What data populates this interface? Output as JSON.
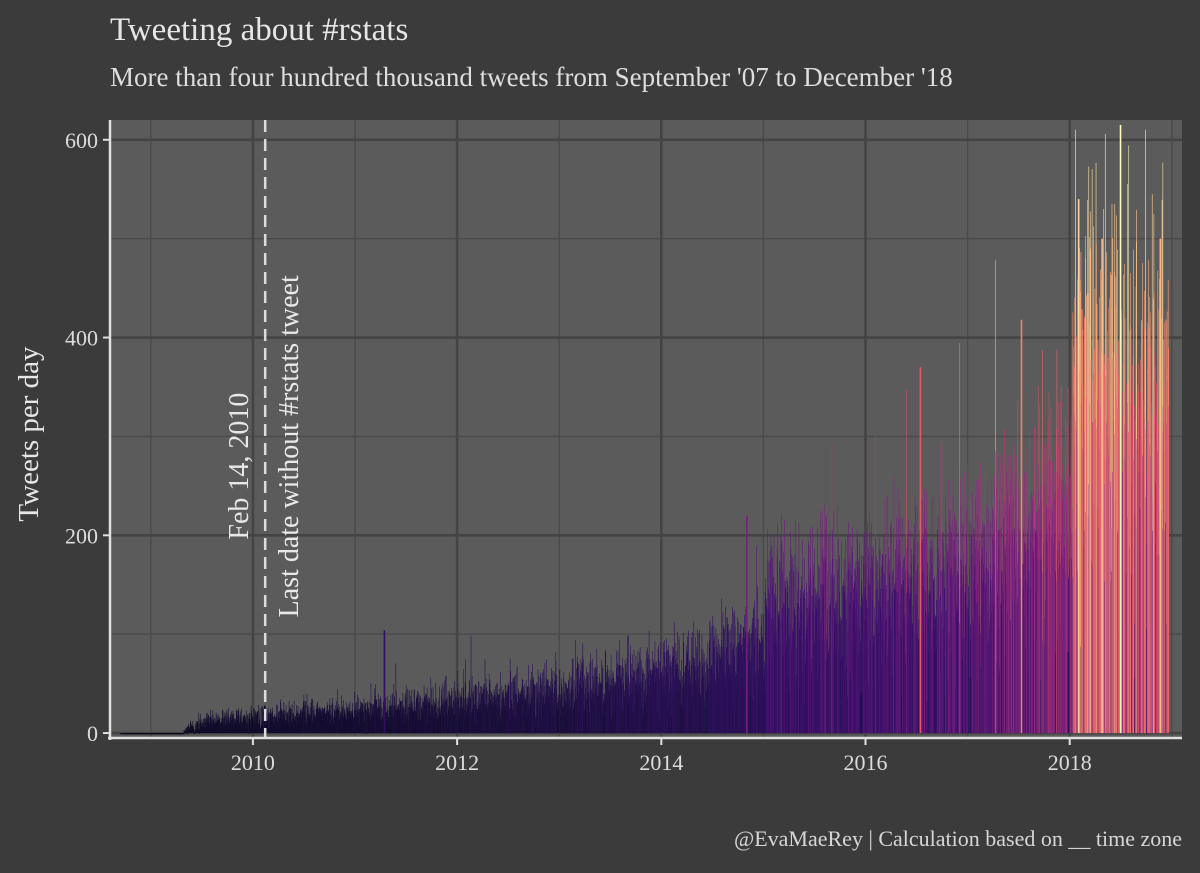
{
  "header": {
    "title": "Tweeting about #rstats",
    "subtitle": "More than four hundred thousand tweets from September '07 to December '18"
  },
  "caption": "@EvaMaeRey | Calculation based on __ time zone",
  "chart_data": {
    "type": "bar",
    "title": "Tweeting about #rstats",
    "subtitle": "More than four hundred thousand tweets from September '07 to December '18",
    "xlabel": "",
    "ylabel": "Tweets per day",
    "xlim": [
      2008.6,
      2019.1
    ],
    "ylim": [
      -5,
      620
    ],
    "grid": true,
    "x_ticks": [
      {
        "value": 2010,
        "label": "2010"
      },
      {
        "value": 2012,
        "label": "2012"
      },
      {
        "value": 2014,
        "label": "2014"
      },
      {
        "value": 2016,
        "label": "2016"
      },
      {
        "value": 2018,
        "label": "2018"
      }
    ],
    "y_ticks": [
      {
        "value": 0,
        "label": "0"
      },
      {
        "value": 200,
        "label": "200"
      },
      {
        "value": 400,
        "label": "400"
      },
      {
        "value": 600,
        "label": "600"
      }
    ],
    "reference_line": {
      "x": 2010.12,
      "style": "dashed"
    },
    "annotations": [
      {
        "text": "Feb 14, 2010",
        "x": 2009.95,
        "y": 270
      },
      {
        "text": "Last date without #rstats tweet",
        "x": 2010.44,
        "y": 290
      }
    ],
    "trend": {
      "x": [
        2008.7,
        2009.3,
        2009.4,
        2009.6,
        2010.0,
        2010.5,
        2011.0,
        2011.5,
        2012.0,
        2012.5,
        2013.0,
        2013.5,
        2014.0,
        2014.5,
        2015.0,
        2015.05,
        2015.5,
        2016.0,
        2016.5,
        2017.0,
        2017.5,
        2018.0,
        2018.05,
        2018.5,
        2019.0
      ],
      "y": [
        0,
        0,
        6,
        13,
        15,
        20,
        22,
        28,
        33,
        38,
        45,
        52,
        62,
        75,
        88,
        138,
        132,
        148,
        163,
        168,
        205,
        232,
        360,
        345,
        330
      ]
    },
    "color_scale": {
      "stops": [
        {
          "value": 0,
          "color": "#0b0b1f"
        },
        {
          "value": 60,
          "color": "#26114f"
        },
        {
          "value": 150,
          "color": "#3b0f70"
        },
        {
          "value": 250,
          "color": "#8c2981"
        },
        {
          "value": 350,
          "color": "#de4968"
        },
        {
          "value": 450,
          "color": "#fe9f6d"
        },
        {
          "value": 620,
          "color": "#fcfdbf"
        }
      ]
    },
    "highlights": [
      {
        "x": 2011.28,
        "y": 104
      },
      {
        "x": 2016.53,
        "y": 370
      },
      {
        "x": 2017.52,
        "y": 418
      },
      {
        "x": 2018.08,
        "y": 540
      },
      {
        "x": 2018.49,
        "y": 615
      },
      {
        "x": 2018.31,
        "y": 500
      },
      {
        "x": 2018.88,
        "y": 500
      },
      {
        "x": 2015.95,
        "y": 42
      },
      {
        "x": 2017.02,
        "y": 56
      },
      {
        "x": 2017.98,
        "y": 82
      },
      {
        "x": 2014.83,
        "y": 220
      }
    ]
  }
}
